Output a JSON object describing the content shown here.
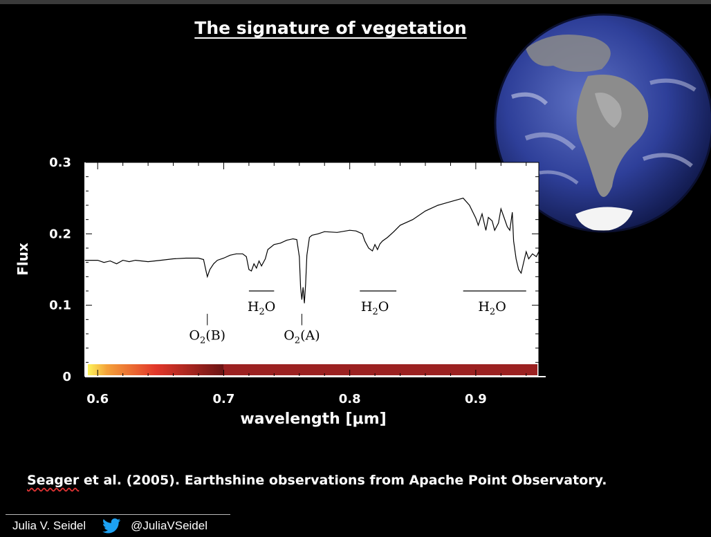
{
  "slide": {
    "title": "The signature of vegetation",
    "citation_author": "Seager",
    "citation_rest": " et al. (2005). Earthshine observations from Apache Point Observatory.",
    "footer_name": "Julia V. Seidel",
    "footer_handle": "@JuliaVSeidel",
    "icons": [
      "globe-image",
      "twitter-bird-icon"
    ]
  },
  "chart_data": {
    "type": "line",
    "title": "",
    "xlabel": "wavelength [μm]",
    "ylabel": "Flux",
    "xlim": [
      0.59,
      0.95
    ],
    "ylim": [
      0,
      0.3
    ],
    "x_ticks": [
      0.6,
      0.7,
      0.8,
      0.9
    ],
    "x_tick_labels": [
      "0.6",
      "0.7",
      "0.8",
      "0.9"
    ],
    "y_ticks": [
      0,
      0.1,
      0.2,
      0.3
    ],
    "y_tick_labels": [
      "0",
      "0.1",
      "0.2",
      "0.3"
    ],
    "grid": false,
    "series": [
      {
        "x": [
          0.59,
          0.6,
          0.605,
          0.61,
          0.615,
          0.62,
          0.625,
          0.63,
          0.64,
          0.65,
          0.66,
          0.67,
          0.68,
          0.684,
          0.686,
          0.687,
          0.689,
          0.692,
          0.695,
          0.7,
          0.705,
          0.71,
          0.715,
          0.718,
          0.72,
          0.722,
          0.724,
          0.726,
          0.728,
          0.73,
          0.733,
          0.735,
          0.74,
          0.745,
          0.75,
          0.755,
          0.758,
          0.76,
          0.761,
          0.762,
          0.763,
          0.764,
          0.765,
          0.766,
          0.768,
          0.77,
          0.775,
          0.78,
          0.79,
          0.8,
          0.805,
          0.81,
          0.812,
          0.815,
          0.818,
          0.82,
          0.822,
          0.824,
          0.826,
          0.83,
          0.835,
          0.84,
          0.85,
          0.86,
          0.87,
          0.88,
          0.89,
          0.895,
          0.9,
          0.902,
          0.905,
          0.908,
          0.91,
          0.913,
          0.915,
          0.918,
          0.92,
          0.922,
          0.925,
          0.927,
          0.929,
          0.93,
          0.932,
          0.934,
          0.936,
          0.938,
          0.94,
          0.942,
          0.945,
          0.948,
          0.95
        ],
        "y": [
          0.163,
          0.163,
          0.16,
          0.162,
          0.158,
          0.163,
          0.161,
          0.163,
          0.161,
          0.163,
          0.165,
          0.166,
          0.166,
          0.164,
          0.148,
          0.14,
          0.15,
          0.158,
          0.163,
          0.166,
          0.17,
          0.172,
          0.172,
          0.168,
          0.15,
          0.148,
          0.158,
          0.152,
          0.162,
          0.155,
          0.165,
          0.178,
          0.185,
          0.187,
          0.191,
          0.193,
          0.192,
          0.168,
          0.125,
          0.108,
          0.125,
          0.103,
          0.13,
          0.17,
          0.195,
          0.198,
          0.2,
          0.203,
          0.202,
          0.205,
          0.204,
          0.2,
          0.19,
          0.18,
          0.176,
          0.185,
          0.178,
          0.186,
          0.19,
          0.195,
          0.203,
          0.212,
          0.22,
          0.232,
          0.24,
          0.245,
          0.25,
          0.24,
          0.222,
          0.212,
          0.228,
          0.205,
          0.223,
          0.218,
          0.205,
          0.215,
          0.235,
          0.225,
          0.21,
          0.205,
          0.23,
          0.19,
          0.165,
          0.15,
          0.145,
          0.16,
          0.175,
          0.165,
          0.172,
          0.168,
          0.175
        ]
      }
    ],
    "annotations": [
      {
        "text_main": "O",
        "text_sub": "2",
        "text_tail": "(B)",
        "x": 0.687,
        "bracket": [
          0.687,
          0.687
        ]
      },
      {
        "text_main": "O",
        "text_sub": "2",
        "text_tail": "(A)",
        "x": 0.762,
        "bracket": [
          0.762,
          0.762
        ]
      },
      {
        "text_main": "H",
        "text_sub": "2",
        "text_tail": "O",
        "x": 0.73,
        "bracket": [
          0.72,
          0.74
        ]
      },
      {
        "text_main": "H",
        "text_sub": "2",
        "text_tail": "O",
        "x": 0.82,
        "bracket": [
          0.808,
          0.837
        ]
      },
      {
        "text_main": "H",
        "text_sub": "2",
        "text_tail": "O",
        "x": 0.913,
        "bracket": [
          0.89,
          0.94
        ]
      }
    ],
    "colors": {
      "line": "#000000",
      "plot_bg": "#ffffff",
      "axis_text": "#ffffff",
      "tick": "#000000"
    }
  }
}
